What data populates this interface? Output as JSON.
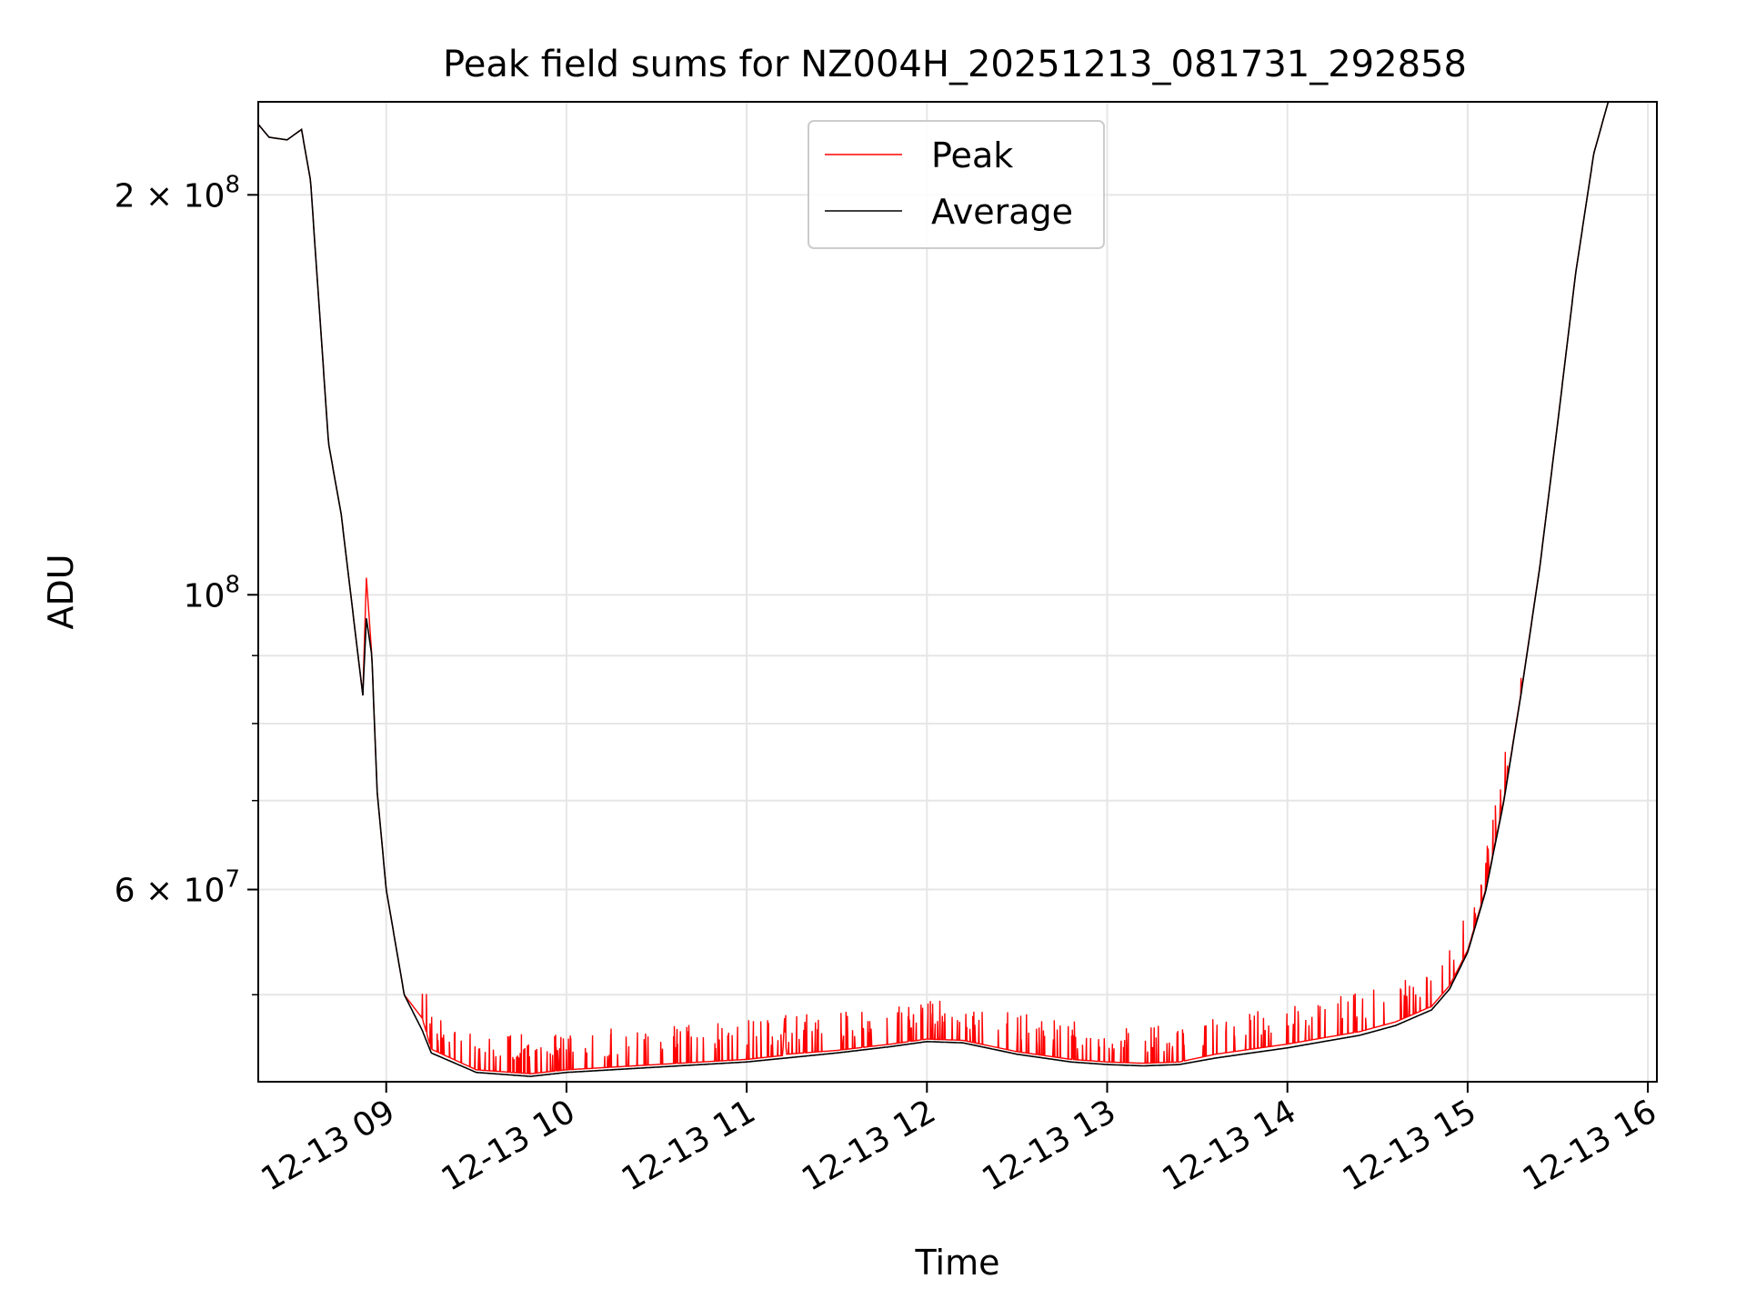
{
  "chart_data": {
    "type": "line",
    "title": "Peak field sums for NZ004H_20251213_081731_292858",
    "xlabel": "Time",
    "ylabel": "ADU",
    "yscale": "log",
    "xlim_hours": [
      8.29,
      16.05
    ],
    "ylim": [
      43000000,
      235000000
    ],
    "x_tick_hours": [
      9,
      10,
      11,
      12,
      13,
      14,
      15,
      16
    ],
    "x_tick_labels": [
      "12-13 09",
      "12-13 10",
      "12-13 11",
      "12-13 12",
      "12-13 13",
      "12-13 14",
      "12-13 15",
      "12-13 16"
    ],
    "y_major_ticks": [
      {
        "value": 200000000,
        "mantissa": "2",
        "exponent": "8"
      },
      {
        "value": 100000000,
        "mantissa": "",
        "exponent": "8"
      },
      {
        "value": 60000000,
        "mantissa": "6",
        "exponent": "7"
      }
    ],
    "y_minor_ticks": [
      50000000,
      70000000,
      80000000,
      90000000
    ],
    "grid": true,
    "legend_position": "top-center",
    "colors": {
      "peak": "#ff0000",
      "average": "#000000",
      "grid": "#e6e6e6"
    },
    "series": [
      {
        "name": "Peak",
        "color": "#ff0000",
        "x_hours": [
          8.29,
          8.35,
          8.45,
          8.53,
          8.58,
          8.68,
          8.75,
          8.87,
          8.89,
          8.92,
          8.95,
          9.0,
          9.1,
          9.2,
          9.25,
          9.5,
          9.8,
          10.0,
          10.5,
          11.0,
          11.2,
          11.21,
          11.22,
          11.5,
          11.8,
          12.0,
          12.2,
          12.5,
          12.8,
          13.0,
          13.2,
          13.4,
          13.6,
          13.8,
          14.0,
          14.2,
          14.4,
          14.6,
          14.8,
          14.9,
          15.0,
          15.1,
          15.2,
          15.3,
          15.4,
          15.5,
          15.6,
          15.7,
          15.78,
          15.85
        ],
        "values": [
          226000000,
          221000000,
          220000000,
          224000000,
          205000000,
          130000000,
          115000000,
          84000000,
          103000000,
          90000000,
          71000000,
          60000000,
          50000000,
          48000000,
          45500000,
          43900000,
          43600000,
          43900000,
          44300000,
          44700000,
          45000000,
          48000000,
          45100000,
          45400000,
          45900000,
          46300000,
          46200000,
          45300000,
          44700000,
          44500000,
          44400000,
          44500000,
          45100000,
          45500000,
          45900000,
          46400000,
          46900000,
          47700000,
          49000000,
          50800000,
          54000000,
          60000000,
          70000000,
          85000000,
          105000000,
          135000000,
          175000000,
          215000000,
          235000000,
          235000000
        ],
        "spike_count": 320,
        "spike_seed": 7
      },
      {
        "name": "Average",
        "color": "#000000",
        "x_hours": [
          8.29,
          8.35,
          8.45,
          8.53,
          8.58,
          8.68,
          8.75,
          8.87,
          8.89,
          8.92,
          8.95,
          9.0,
          9.1,
          9.2,
          9.25,
          9.5,
          9.8,
          10.0,
          10.5,
          11.0,
          11.5,
          11.8,
          12.0,
          12.2,
          12.5,
          12.8,
          13.0,
          13.2,
          13.4,
          13.6,
          13.8,
          14.0,
          14.2,
          14.4,
          14.6,
          14.8,
          14.9,
          15.0,
          15.1,
          15.2,
          15.3,
          15.4,
          15.5,
          15.6,
          15.7,
          15.78,
          15.85
        ],
        "values": [
          226000000,
          221000000,
          220000000,
          224000000,
          205000000,
          130000000,
          115000000,
          84000000,
          96000000,
          90000000,
          71000000,
          60000000,
          50000000,
          47000000,
          45200000,
          43700000,
          43400000,
          43700000,
          44100000,
          44500000,
          45200000,
          45700000,
          46100000,
          46000000,
          45100000,
          44500000,
          44300000,
          44200000,
          44300000,
          44800000,
          45200000,
          45600000,
          46100000,
          46600000,
          47400000,
          48700000,
          50500000,
          53800000,
          59800000,
          69800000,
          84800000,
          104800000,
          134800000,
          174800000,
          214800000,
          235000000,
          235000000
        ]
      }
    ]
  }
}
